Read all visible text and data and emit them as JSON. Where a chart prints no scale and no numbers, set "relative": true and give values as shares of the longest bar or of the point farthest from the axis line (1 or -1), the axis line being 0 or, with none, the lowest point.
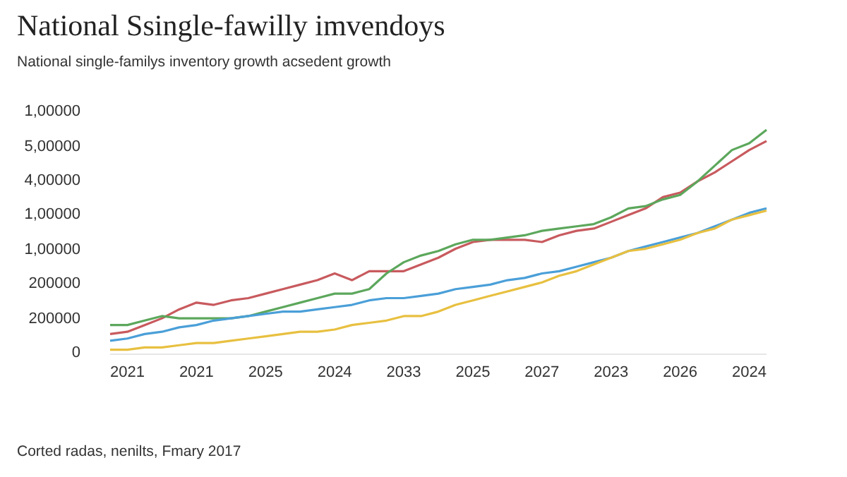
{
  "chart_data": {
    "type": "line",
    "relative": true,
    "title": "National Ssingle-fawilly imvendoys",
    "subtitle": "National single-familys inventory growth acsedent growth",
    "annotations": [
      "Corted radas, nenilts, Fmary 2017",
      "0",
      "200000",
      "200000",
      "1,00000",
      "1,00000",
      "4,00000",
      "5,00000",
      "1,00000"
    ],
    "categories": [
      null,
      "2021",
      null,
      null,
      null,
      "2021",
      null,
      null,
      null,
      "2025",
      null,
      null,
      null,
      "2024",
      null,
      null,
      null,
      "2033",
      null,
      null,
      null,
      "2025",
      null,
      null,
      null,
      "2027",
      null,
      null,
      null,
      "2023",
      null,
      null,
      null,
      "2026",
      null,
      null,
      null,
      "2024",
      null
    ],
    "line_style": "solid",
    "series": [
      {
        "color": "#c85a5e",
        "values": [
          0.09,
          0.1,
          0.13,
          0.16,
          0.2,
          0.23,
          0.22,
          0.24,
          0.25,
          0.27,
          0.29,
          0.31,
          0.33,
          0.36,
          0.33,
          0.37,
          0.37,
          0.37,
          0.4,
          0.43,
          0.47,
          0.5,
          0.51,
          0.51,
          0.51,
          0.5,
          0.53,
          0.55,
          0.56,
          0.59,
          0.62,
          0.65,
          0.7,
          0.72,
          0.77,
          0.81,
          0.86,
          0.91,
          0.95
        ]
      },
      {
        "color": "#5ca75c",
        "values": [
          0.13,
          0.13,
          0.15,
          0.17,
          0.16,
          0.16,
          0.16,
          0.16,
          0.17,
          0.19,
          0.21,
          0.23,
          0.25,
          0.27,
          0.27,
          0.29,
          0.36,
          0.41,
          0.44,
          0.46,
          0.49,
          0.51,
          0.51,
          0.52,
          0.53,
          0.55,
          0.56,
          0.57,
          0.58,
          0.61,
          0.65,
          0.66,
          0.69,
          0.71,
          0.77,
          0.84,
          0.91,
          0.94,
          1
        ]
      },
      {
        "color": "#4a9fd8",
        "values": [
          0.06,
          0.07,
          0.09,
          0.1,
          0.12,
          0.13,
          0.15,
          0.16,
          0.17,
          0.18,
          0.19,
          0.19,
          0.2,
          0.21,
          0.22,
          0.24,
          0.25,
          0.25,
          0.26,
          0.27,
          0.29,
          0.3,
          0.31,
          0.33,
          0.34,
          0.36,
          0.37,
          0.39,
          0.41,
          0.43,
          0.46,
          0.48,
          0.5,
          0.52,
          0.54,
          0.57,
          0.6,
          0.63,
          0.65
        ]
      },
      {
        "color": "#e8c040",
        "values": [
          0.02,
          0.02,
          0.03,
          0.03,
          0.04,
          0.05,
          0.05,
          0.06,
          0.07,
          0.08,
          0.09,
          0.1,
          0.1,
          0.11,
          0.13,
          0.14,
          0.15,
          0.17,
          0.17,
          0.19,
          0.22,
          0.24,
          0.26,
          0.28,
          0.3,
          0.32,
          0.35,
          0.37,
          0.4,
          0.43,
          0.46,
          0.47,
          0.49,
          0.51,
          0.54,
          0.56,
          0.6,
          0.62,
          0.64
        ]
      }
    ]
  }
}
